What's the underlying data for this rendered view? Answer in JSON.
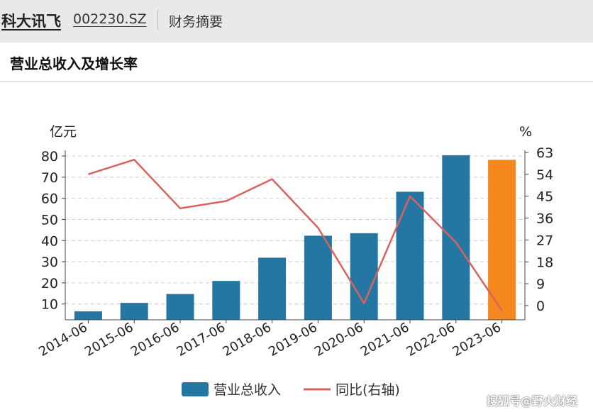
{
  "header": {
    "company_name": "科大讯飞",
    "stock_code": "002230.SZ",
    "section": "财务摘要"
  },
  "title": "营业总收入及增长率",
  "watermark": "搜狐号@野火财经",
  "colors": {
    "bar": "#2477a3",
    "bar_highlight": "#f5871f",
    "line": "#d9625f",
    "grid": "#cccccc"
  },
  "chart_data": {
    "type": "bar",
    "categories": [
      "2014-06",
      "2015-06",
      "2016-06",
      "2017-06",
      "2018-06",
      "2019-06",
      "2020-06",
      "2021-06",
      "2022-06",
      "2023-06"
    ],
    "series": [
      {
        "name": "营业总收入",
        "type": "bar",
        "axis": "left",
        "values": [
          6.5,
          10.5,
          14.7,
          20.9,
          31.9,
          42.3,
          43.5,
          63.1,
          80.4,
          78.2
        ]
      },
      {
        "name": "同比(右轴)",
        "type": "line",
        "axis": "right",
        "values": [
          54,
          60,
          40,
          43,
          52,
          32,
          1,
          45,
          26,
          -2
        ]
      }
    ],
    "highlight_index": 9,
    "y_left": {
      "label": "亿元",
      "ticks": [
        10,
        20,
        30,
        40,
        50,
        60,
        70,
        80
      ]
    },
    "y_right": {
      "label": "%",
      "ticks": [
        0,
        9,
        18,
        27,
        36,
        45,
        54,
        63
      ]
    },
    "grid": true,
    "legend_position": "bottom"
  }
}
